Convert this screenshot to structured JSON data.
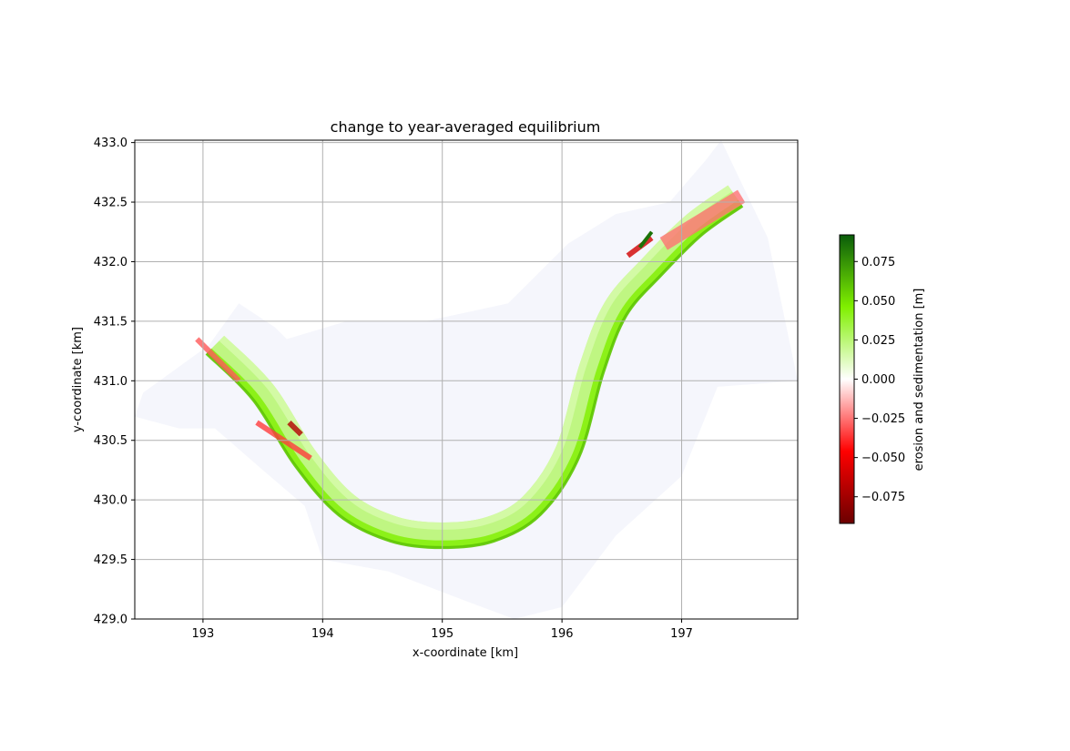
{
  "chart_data": {
    "type": "heatmap",
    "title": "change to year-averaged equilibrium",
    "xlabel": "x-coordinate [km]",
    "ylabel": "y-coordinate [km]",
    "xlim": [
      192.43,
      197.97
    ],
    "ylim": [
      429.0,
      433.02
    ],
    "xticks": [
      193,
      194,
      195,
      196,
      197
    ],
    "yticks": [
      429.0,
      429.5,
      430.0,
      430.5,
      431.0,
      431.5,
      432.0,
      432.5,
      433.0
    ],
    "xtick_labels": [
      "193",
      "194",
      "195",
      "196",
      "197"
    ],
    "ytick_labels": [
      "429.0",
      "429.5",
      "430.0",
      "430.5",
      "431.0",
      "431.5",
      "432.0",
      "432.5",
      "433.0"
    ],
    "grid": true,
    "colorbar": {
      "label": "erosion and sedimentation [m]",
      "range": [
        -0.092,
        0.092
      ],
      "ticks": [
        -0.075,
        -0.05,
        -0.025,
        0.0,
        0.025,
        0.05,
        0.075
      ],
      "tick_labels": [
        "−0.075",
        "−0.050",
        "−0.025",
        "0.000",
        "0.025",
        "0.050",
        "0.075"
      ],
      "colors": [
        "#6b0000",
        "#ff0000",
        "#ffffff",
        "#80f000",
        "#0a5c0a"
      ]
    },
    "background_color": "#f5f6fc",
    "floodplain_polygon": [
      [
        192.5,
        430.9
      ],
      [
        193.05,
        431.3
      ],
      [
        193.3,
        431.65
      ],
      [
        193.6,
        431.45
      ],
      [
        193.7,
        431.35
      ],
      [
        194.2,
        431.5
      ],
      [
        195.2,
        431.5
      ],
      [
        195.2,
        431.35
      ],
      [
        194.5,
        431.35
      ],
      [
        194.4,
        431.4
      ],
      [
        195.55,
        431.65
      ],
      [
        196.05,
        432.15
      ],
      [
        196.45,
        432.4
      ],
      [
        196.9,
        432.5
      ],
      [
        197.2,
        432.85
      ],
      [
        197.33,
        433.02
      ],
      [
        197.6,
        432.45
      ],
      [
        197.72,
        432.2
      ],
      [
        197.97,
        431.0
      ],
      [
        197.3,
        430.95
      ],
      [
        197.0,
        430.2
      ],
      [
        196.45,
        429.7
      ],
      [
        196.0,
        429.1
      ],
      [
        195.6,
        429.0
      ],
      [
        195.2,
        429.15
      ],
      [
        194.55,
        429.4
      ],
      [
        194.0,
        429.5
      ],
      [
        193.85,
        429.95
      ],
      [
        193.5,
        430.25
      ],
      [
        193.1,
        430.6
      ],
      [
        192.8,
        430.6
      ],
      [
        192.43,
        430.7
      ]
    ],
    "centerline": [
      [
        193.1,
        431.3
      ],
      [
        193.5,
        430.9
      ],
      [
        193.85,
        430.35
      ],
      [
        194.2,
        429.95
      ],
      [
        194.6,
        429.75
      ],
      [
        195.0,
        429.7
      ],
      [
        195.4,
        429.75
      ],
      [
        195.75,
        429.95
      ],
      [
        196.05,
        430.4
      ],
      [
        196.25,
        431.1
      ],
      [
        196.45,
        431.6
      ],
      [
        196.75,
        431.95
      ],
      [
        197.1,
        432.3
      ],
      [
        197.45,
        432.55
      ]
    ],
    "channel_series": [
      {
        "value": 0.03,
        "side": "center",
        "width_km": 0.22
      },
      {
        "value": 0.045,
        "side": "outer",
        "width_km": 0.06
      },
      {
        "value": 0.06,
        "side": "outer-edge",
        "width_km": 0.025
      },
      {
        "value": 0.015,
        "side": "inner",
        "width_km": 0.06
      }
    ],
    "erosion_patches": [
      {
        "x": [
          192.95,
          193.3
        ],
        "y": [
          431.35,
          431.0
        ],
        "value": -0.03
      },
      {
        "x": [
          193.45,
          193.9
        ],
        "y": [
          430.65,
          430.35
        ],
        "value": -0.035
      },
      {
        "x": [
          196.55,
          196.75
        ],
        "y": [
          432.05,
          432.2
        ],
        "value": -0.06
      },
      {
        "x": [
          196.85,
          197.5
        ],
        "y": [
          432.15,
          432.55
        ],
        "value": -0.025
      },
      {
        "x": [
          193.72,
          193.82
        ],
        "y": [
          430.65,
          430.55
        ],
        "value": -0.07
      }
    ],
    "sedimentation_patches": [
      {
        "x": [
          196.65,
          196.75
        ],
        "y": [
          432.12,
          432.25
        ],
        "value": 0.085
      }
    ]
  }
}
